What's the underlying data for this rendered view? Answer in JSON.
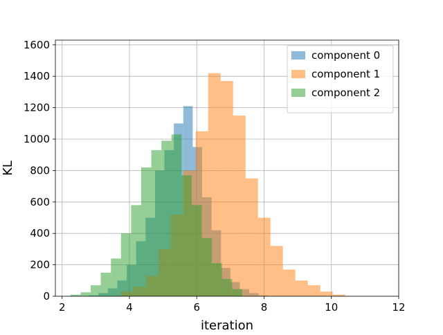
{
  "chart_data": {
    "type": "histogram",
    "title": "",
    "xlabel": "iteration",
    "ylabel": "KL",
    "xlim": [
      1.8,
      12.0
    ],
    "ylim": [
      0,
      1630
    ],
    "xticks": [
      2,
      4,
      6,
      8,
      10,
      12
    ],
    "yticks": [
      0,
      200,
      400,
      600,
      800,
      1000,
      1200,
      1400,
      1600
    ],
    "grid": true,
    "legend_position": "top-right",
    "series": [
      {
        "name": "component 0",
        "color": "#1f77b4",
        "opacity": 0.5,
        "bin_edges": [
          2.8,
          3.08,
          3.36,
          3.64,
          3.92,
          4.2,
          4.48,
          4.76,
          5.04,
          5.32,
          5.6,
          5.88,
          6.16,
          6.44,
          6.72,
          7.0,
          7.28,
          7.56,
          7.84,
          8.12
        ],
        "counts": [
          5,
          20,
          50,
          100,
          200,
          350,
          500,
          800,
          930,
          1100,
          1210,
          950,
          630,
          420,
          180,
          90,
          45,
          20,
          5
        ]
      },
      {
        "name": "component 1",
        "color": "#ff7f0e",
        "opacity": 0.5,
        "bin_edges": [
          3.75,
          4.12,
          4.49,
          4.86,
          5.23,
          5.6,
          5.97,
          6.34,
          6.71,
          7.08,
          7.45,
          7.82,
          8.19,
          8.56,
          8.93,
          9.3,
          9.67,
          10.04,
          10.41
        ],
        "counts": [
          30,
          60,
          130,
          300,
          520,
          800,
          1050,
          1420,
          1370,
          1150,
          750,
          500,
          320,
          170,
          100,
          70,
          30,
          10
        ]
      },
      {
        "name": "component 2",
        "color": "#2ca02c",
        "opacity": 0.5,
        "bin_edges": [
          2.25,
          2.55,
          2.85,
          3.15,
          3.45,
          3.75,
          4.05,
          4.35,
          4.65,
          4.95,
          5.25,
          5.55,
          5.85,
          6.15,
          6.45,
          6.75,
          7.05,
          7.35
        ],
        "counts": [
          10,
          25,
          70,
          150,
          240,
          400,
          580,
          820,
          930,
          990,
          1030,
          770,
          580,
          370,
          210,
          110,
          45
        ]
      }
    ]
  }
}
